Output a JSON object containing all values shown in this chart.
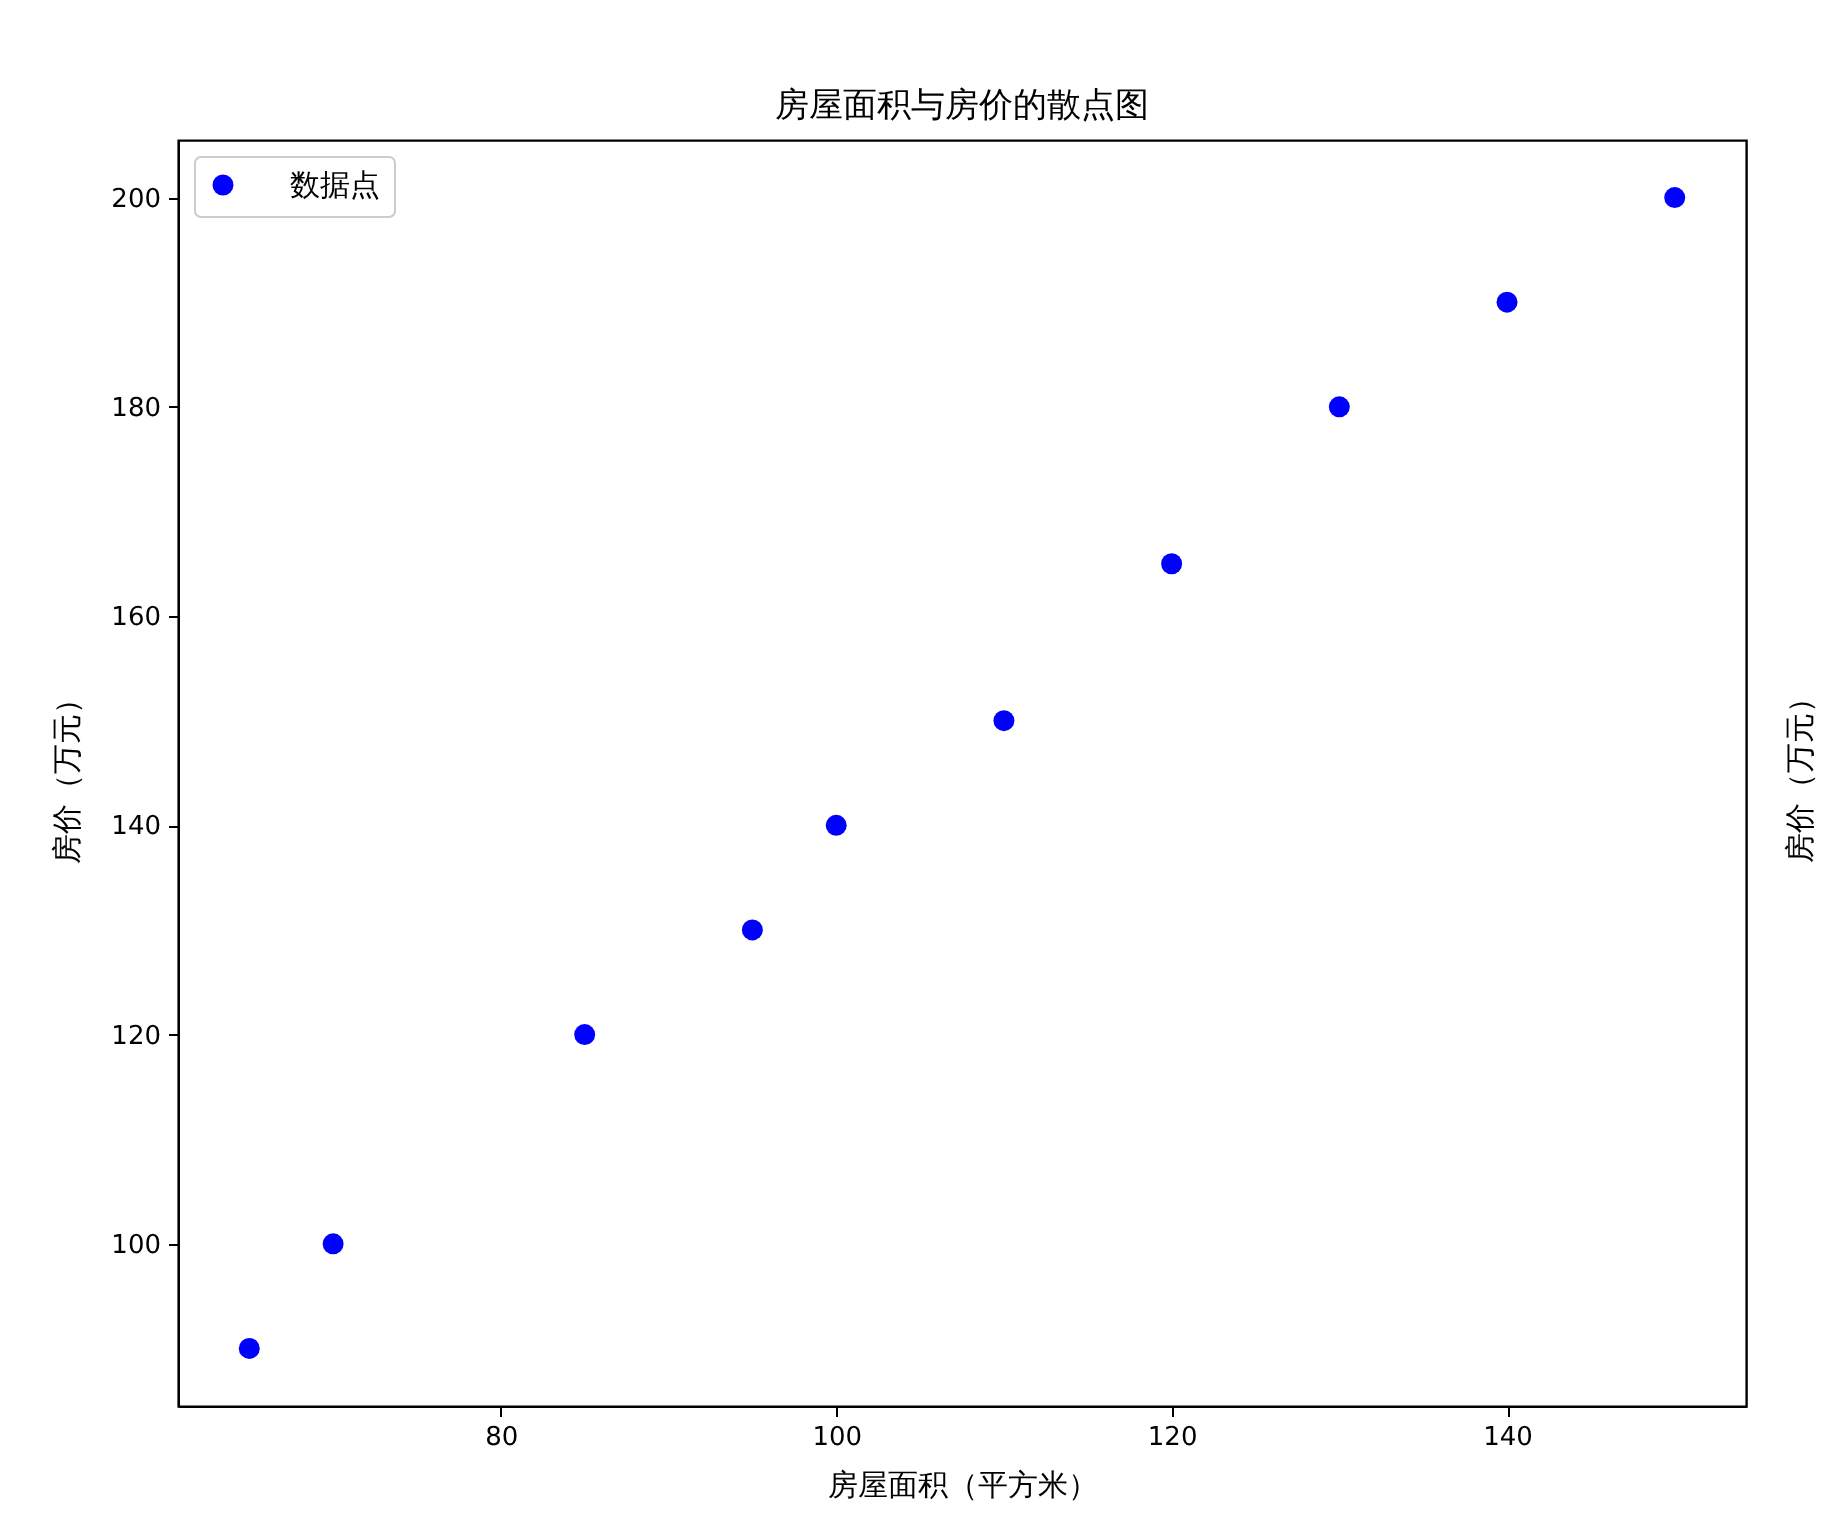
{
  "chart_data": {
    "type": "scatter",
    "title": "房屋面积与房价的散点图",
    "xlabel": "房屋面积（平方米）",
    "ylabel": "房价（万元）",
    "y2label": "房价（万元）",
    "x": [
      65,
      70,
      85,
      95,
      100,
      110,
      120,
      130,
      140,
      150
    ],
    "series": [
      {
        "name": "数据点",
        "color": "#0000ff",
        "values": [
          90,
          100,
          120,
          130,
          140,
          150,
          165,
          180,
          190,
          200
        ]
      }
    ],
    "xlim": [
      60.75,
      154.25
    ],
    "xticks": [
      80,
      100,
      120,
      140
    ],
    "ylim": [
      84.5,
      205.5
    ],
    "yticks": [
      100,
      120,
      140,
      160,
      180,
      200
    ],
    "grid": false,
    "legend": "top left",
    "marker": "circle"
  }
}
